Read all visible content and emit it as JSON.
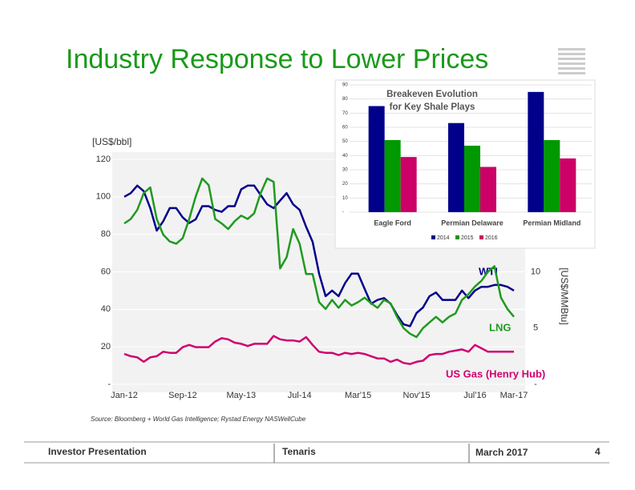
{
  "title": "Industry Response to Lower Prices",
  "source": "Source: Bloomberg + World Gas Intelligence; Rystad Energy NASWellCube",
  "footer": {
    "left": "Investor Presentation",
    "center": "Tenaris",
    "right": "March 2017",
    "page": "4"
  },
  "chart_data": [
    {
      "type": "line",
      "y_label": "[US$/bbl]",
      "y2_label": "[US$/MMBtu]",
      "categories": [
        "Jan-12",
        null,
        null,
        null,
        null,
        null,
        null,
        null,
        null,
        "Sep-12",
        null,
        null,
        null,
        null,
        null,
        null,
        null,
        null,
        "May-13",
        null,
        null,
        null,
        null,
        null,
        null,
        null,
        null,
        "Jul-14",
        null,
        null,
        null,
        null,
        null,
        null,
        null,
        null,
        "Mar'15",
        null,
        null,
        null,
        null,
        null,
        null,
        null,
        null,
        "Nov'15",
        null,
        null,
        null,
        null,
        null,
        null,
        null,
        null,
        "Jul'16",
        null,
        null,
        null,
        null,
        null,
        "Mar-17"
      ],
      "series": [
        {
          "name": "WTI",
          "color": "#00008b",
          "values": [
            100,
            102,
            106,
            103,
            94,
            82,
            87,
            94,
            94,
            89,
            86,
            88,
            95,
            95,
            93,
            92,
            95,
            95,
            104,
            106,
            106,
            101,
            96,
            94,
            98,
            102,
            96,
            93,
            84,
            76,
            59,
            47,
            50,
            47,
            54,
            59,
            59,
            51,
            43,
            45,
            46,
            43,
            37,
            32,
            31,
            38,
            41,
            47,
            49,
            45,
            45,
            45,
            50,
            46,
            50,
            52,
            52,
            53,
            53,
            52,
            50
          ]
        },
        {
          "name": "LNG",
          "color": "#1f9a1f",
          "axis": "y2",
          "values": [
            14.3,
            14.7,
            15.5,
            17,
            17.5,
            14.7,
            13.3,
            12.7,
            12.5,
            13,
            14.7,
            16.7,
            18.3,
            17.7,
            14.7,
            14.3,
            13.8,
            14.5,
            15,
            14.7,
            15.2,
            17,
            18.3,
            18,
            10.3,
            11.3,
            13.8,
            12.5,
            9.8,
            9.8,
            7.3,
            6.7,
            7.5,
            6.8,
            7.5,
            7,
            7.3,
            7.7,
            7.2,
            6.8,
            7.5,
            7.2,
            6,
            5,
            4.5,
            4.2,
            5,
            5.5,
            6,
            5.5,
            6,
            6.3,
            7.5,
            8,
            8.7,
            9.2,
            10,
            10.5,
            7.7,
            6.7,
            6
          ]
        },
        {
          "name": "US Gas (Henry Hub)",
          "color": "#d0006f",
          "axis": "y2",
          "values": [
            2.7,
            2.5,
            2.4,
            2,
            2.4,
            2.5,
            2.9,
            2.8,
            2.8,
            3.3,
            3.5,
            3.3,
            3.3,
            3.3,
            3.8,
            4.1,
            4,
            3.7,
            3.6,
            3.4,
            3.6,
            3.6,
            3.6,
            4.3,
            4,
            3.9,
            3.9,
            3.8,
            4.2,
            3.5,
            2.9,
            2.8,
            2.8,
            2.6,
            2.8,
            2.7,
            2.8,
            2.7,
            2.5,
            2.3,
            2.3,
            2,
            2.2,
            1.9,
            1.8,
            2,
            2.1,
            2.6,
            2.7,
            2.7,
            2.9,
            3,
            3.1,
            2.9,
            3.5,
            3.2,
            2.9,
            2.9,
            2.9,
            2.9,
            2.9
          ]
        }
      ],
      "ylim": [
        0,
        120
      ],
      "yticks": [
        {
          "value": 0,
          "label": "-"
        },
        20,
        40,
        60,
        80,
        100,
        120
      ],
      "y2lim": [
        0,
        20
      ],
      "y2ticks": [
        {
          "value": 0,
          "label": "-"
        },
        5,
        10
      ],
      "grid": true
    },
    {
      "type": "bar",
      "title": [
        "Breakeven Evolution",
        "for Key Shale Plays"
      ],
      "categories": [
        "Eagle Ford",
        "Permian Delaware",
        "Permian Midland"
      ],
      "series": [
        {
          "name": "2014",
          "color": "#00008b",
          "values": [
            75,
            63,
            85
          ]
        },
        {
          "name": "2015",
          "color": "#009900",
          "values": [
            51,
            47,
            51
          ]
        },
        {
          "name": "2016",
          "color": "#cc0066",
          "values": [
            39,
            32,
            38
          ]
        }
      ],
      "ylim": [
        0,
        90
      ],
      "yticks": [
        {
          "value": 0,
          "label": "-"
        },
        10,
        20,
        30,
        40,
        50,
        60,
        70,
        80,
        90
      ],
      "grid": true,
      "legend": "bottom"
    }
  ]
}
